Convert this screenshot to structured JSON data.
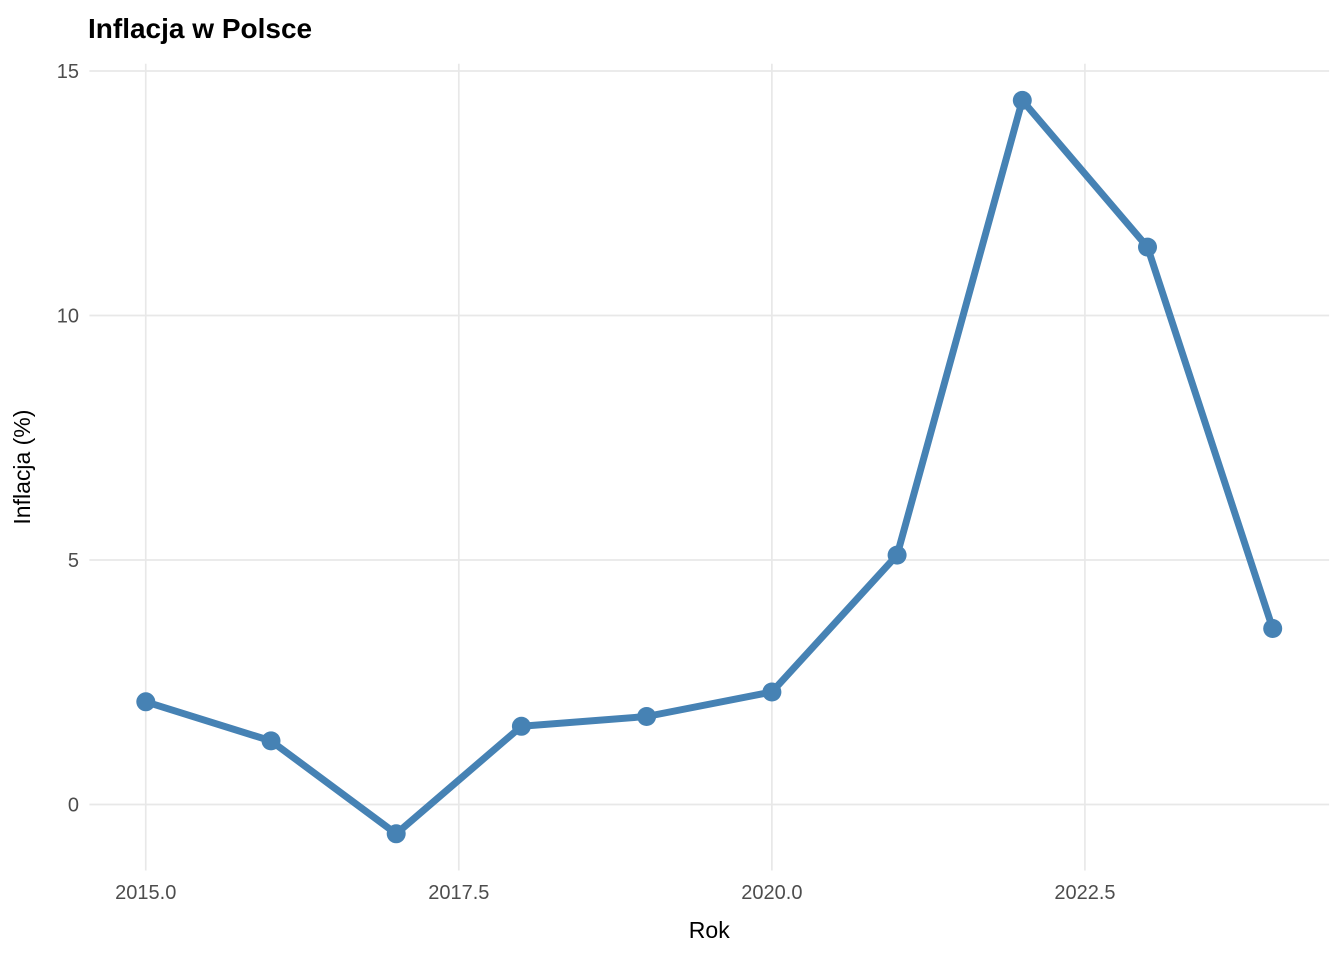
{
  "title": "Inflacja w Polsce",
  "chart_data": {
    "type": "line",
    "title": "Inflacja w Polsce",
    "xlabel": "Rok",
    "ylabel": "Inflacja (%)",
    "series": [
      {
        "name": "Inflacja",
        "x": [
          2015,
          2016,
          2017,
          2018,
          2019,
          2020,
          2021,
          2022,
          2023,
          2024
        ],
        "values": [
          2.1,
          1.3,
          -0.6,
          1.6,
          1.8,
          2.3,
          5.1,
          14.4,
          11.4,
          3.6
        ]
      }
    ],
    "x_ticks": [
      {
        "value": 2015.0,
        "label": "2015.0"
      },
      {
        "value": 2017.5,
        "label": "2017.5"
      },
      {
        "value": 2020.0,
        "label": "2020.0"
      },
      {
        "value": 2022.5,
        "label": "2022.5"
      }
    ],
    "y_ticks": [
      {
        "value": 0,
        "label": "0"
      },
      {
        "value": 5,
        "label": "5"
      },
      {
        "value": 10,
        "label": "10"
      },
      {
        "value": 15,
        "label": "15"
      }
    ],
    "xlim": [
      2014.55,
      2024.45
    ],
    "ylim": [
      -1.35,
      15.15
    ],
    "grid": "major-only",
    "legend": "none",
    "colors": {
      "line": "#4682B4",
      "point": "#4682B4",
      "grid": "#E8E8E8",
      "tick_label": "#4D4D4D",
      "text": "#000000",
      "background": "#FFFFFF"
    }
  }
}
